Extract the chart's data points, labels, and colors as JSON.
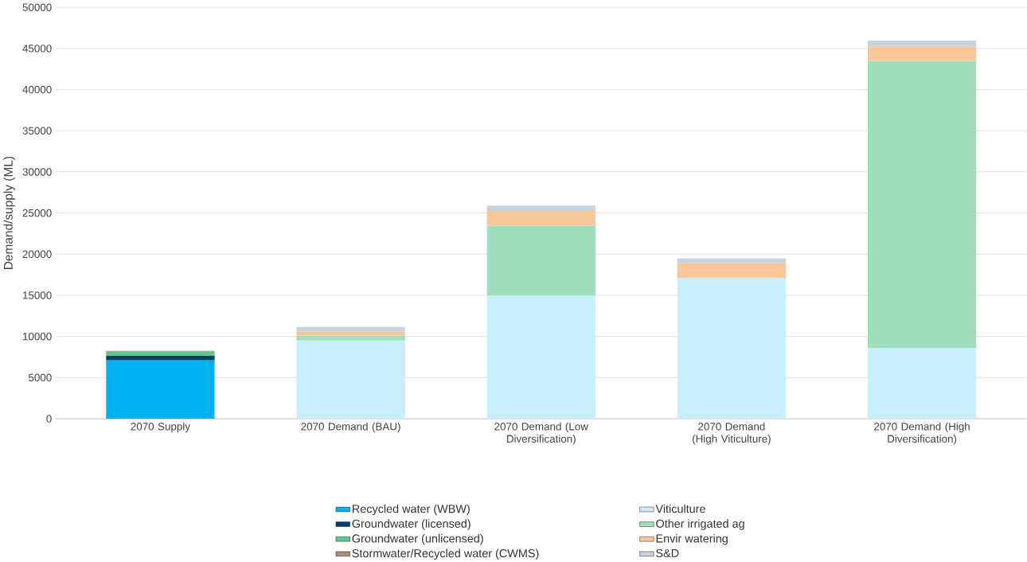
{
  "chart_data": {
    "type": "bar",
    "stacked": true,
    "ylabel": "Demand/supply (ML)",
    "categories": [
      "2070 Supply",
      "2070 Demand (BAU)",
      "2070 Demand (Low Diversification)",
      "2070 Demand (High Viticulture)",
      "2070 Demand (High Diversification)"
    ],
    "series": [
      {
        "name": "Recycled water (WBW)",
        "color": "#00b0f0",
        "values": [
          7100,
          null,
          null,
          null,
          null
        ]
      },
      {
        "name": "Groundwater (licensed)",
        "color": "#003f63",
        "values": [
          550,
          null,
          null,
          null,
          null
        ]
      },
      {
        "name": "Groundwater (unlicensed)",
        "color": "#5bc98a",
        "values": [
          500,
          null,
          null,
          null,
          null
        ]
      },
      {
        "name": "Stormwater/Recycled water (CWMS)",
        "color": "#a09080",
        "values": [
          100,
          null,
          null,
          null,
          null
        ]
      },
      {
        "name": "Viticulture",
        "color": "#c9eefc",
        "values": [
          null,
          9500,
          15000,
          17100,
          8600
        ]
      },
      {
        "name": "Other irrigated ag",
        "color": "#a0dfbd",
        "values": [
          null,
          600,
          8450,
          null,
          34900
        ]
      },
      {
        "name": "Envir watering",
        "color": "#f6c799",
        "values": [
          null,
          500,
          1800,
          1800,
          1750
        ]
      },
      {
        "name": "S&D",
        "color": "#c8d2dc",
        "values": [
          null,
          550,
          650,
          600,
          700
        ]
      }
    ],
    "ylim": [
      0,
      50000
    ],
    "yticks": [
      0,
      5000,
      10000,
      15000,
      20000,
      25000,
      30000,
      35000,
      40000,
      45000,
      50000
    ],
    "grid": "y",
    "legend": "bottom"
  }
}
